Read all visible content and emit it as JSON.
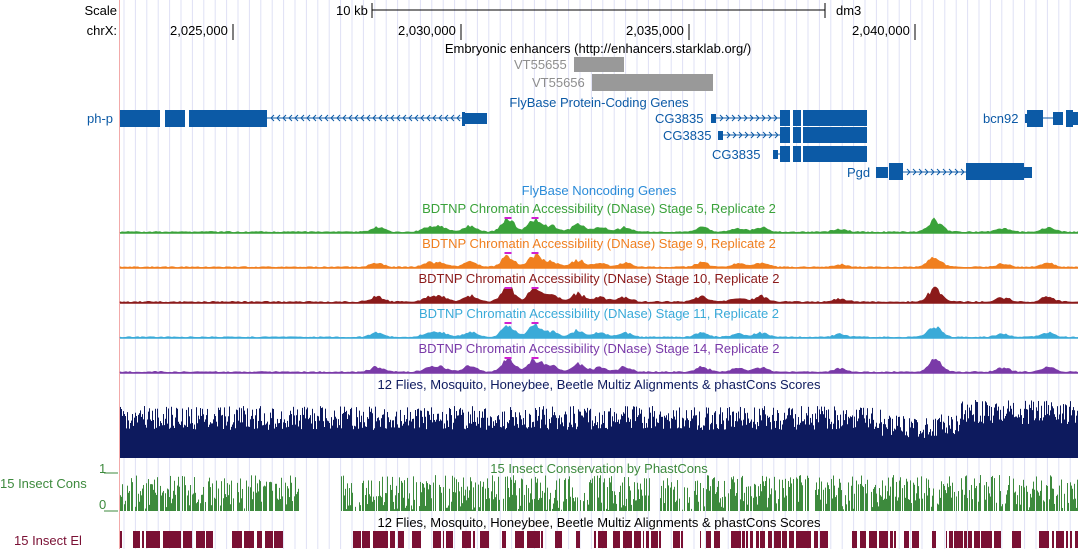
{
  "scale": {
    "label": "Scale",
    "bar_label": "10 kb",
    "assembly": "dm3"
  },
  "ruler": {
    "chrom_label": "chrX:",
    "ticks": [
      "2,025,000",
      "2,030,000",
      "2,035,000",
      "2,040,000"
    ]
  },
  "tracks": {
    "enhancers": {
      "title": "Embryonic enhancers (http://enhancers.starklab.org/)",
      "items": [
        "VT55655",
        "VT55656"
      ],
      "color": "#999999"
    },
    "protein_genes": {
      "title": "FlyBase Protein-Coding Genes",
      "color": "#0c5aa6",
      "genes": [
        "ph-p",
        "CG3835",
        "CG3835",
        "CG3835",
        "bcn92",
        "Pgd"
      ]
    },
    "noncoding_genes": {
      "title": "FlyBase Noncoding Genes",
      "color": "#2a8bd8"
    },
    "dnase": [
      {
        "title": "BDTNP Chromatin Accessibility (DNase) Stage 5, Replicate 2",
        "color": "#3aa23a"
      },
      {
        "title": "BDTNP Chromatin Accessibility (DNase) Stage 9, Replicate 2",
        "color": "#f07f1f"
      },
      {
        "title": "BDTNP Chromatin Accessibility (DNase) Stage 10, Replicate 2",
        "color": "#8b1a1a"
      },
      {
        "title": "BDTNP Chromatin Accessibility (DNase) Stage 11, Replicate 2",
        "color": "#3aaad8"
      },
      {
        "title": "BDTNP Chromatin Accessibility (DNase) Stage 14, Replicate 2",
        "color": "#7a3aa8"
      }
    ],
    "multiz": {
      "title": "12 Flies, Mosquito, Honeybee, Beetle Multiz Alignments & phastCons Scores",
      "color": "#0d1a5e"
    },
    "phastcons": {
      "side_label": "15 Insect Cons",
      "title": "15 Insect Conservation by PhastCons",
      "axis_max": "1",
      "axis_min": "0",
      "color": "#3d8a3d"
    },
    "elements": {
      "side_label": "15 Insect El",
      "title": "12 Flies, Mosquito, Honeybee, Beetle Multiz Alignments & phastCons Scores",
      "color": "#7a1034"
    }
  }
}
